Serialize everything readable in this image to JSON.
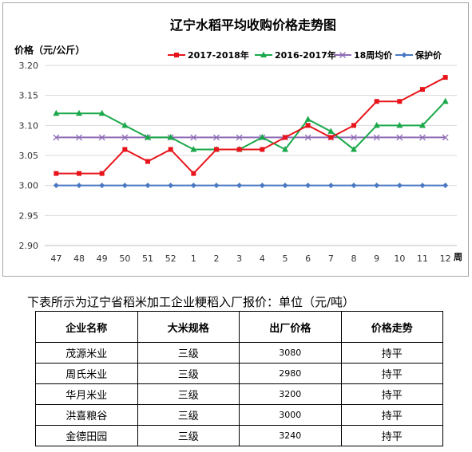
{
  "chart_data": {
    "type": "line",
    "title": "辽宁水稻平均收购价格走势图",
    "ylabel": "价格（元/公斤）",
    "xlabel": "周",
    "categories": [
      "47",
      "48",
      "49",
      "50",
      "51",
      "52",
      "1",
      "2",
      "3",
      "4",
      "5",
      "6",
      "7",
      "8",
      "9",
      "10",
      "11",
      "12"
    ],
    "ylim": [
      2.9,
      3.2
    ],
    "yticks": [
      "2.90",
      "2.95",
      "3.00",
      "3.05",
      "3.10",
      "3.15",
      "3.20"
    ],
    "grid": true,
    "legend_position": "top-right",
    "series": [
      {
        "name": "2017-2018年",
        "color": "#e8141b",
        "marker": "square",
        "values": [
          3.02,
          3.02,
          3.02,
          3.06,
          3.04,
          3.06,
          3.02,
          3.06,
          3.06,
          3.06,
          3.08,
          3.1,
          3.08,
          3.1,
          3.14,
          3.14,
          3.16,
          3.18
        ]
      },
      {
        "name": "2016-2017年",
        "color": "#1aa84a",
        "marker": "triangle",
        "values": [
          3.12,
          3.12,
          3.12,
          3.1,
          3.08,
          3.08,
          3.06,
          3.06,
          3.06,
          3.08,
          3.06,
          3.11,
          3.09,
          3.06,
          3.1,
          3.1,
          3.1,
          3.14
        ]
      },
      {
        "name": "18周均价",
        "color": "#8e6bb5",
        "marker": "x",
        "values": [
          3.08,
          3.08,
          3.08,
          3.08,
          3.08,
          3.08,
          3.08,
          3.08,
          3.08,
          3.08,
          3.08,
          3.08,
          3.08,
          3.08,
          3.08,
          3.08,
          3.08,
          3.08
        ]
      },
      {
        "name": "保护价",
        "color": "#4a78c2",
        "marker": "diamond",
        "values": [
          3.0,
          3.0,
          3.0,
          3.0,
          3.0,
          3.0,
          3.0,
          3.0,
          3.0,
          3.0,
          3.0,
          3.0,
          3.0,
          3.0,
          3.0,
          3.0,
          3.0,
          3.0
        ]
      }
    ]
  },
  "caption": "下表所示为辽宁省稻米加工企业粳稻入厂报价：单位（元/吨）",
  "table": {
    "headers": [
      "企业名称",
      "大米规格",
      "出厂价格",
      "价格走势"
    ],
    "rows": [
      [
        "茂源米业",
        "三级",
        "3080",
        "持平"
      ],
      [
        "周氏米业",
        "三级",
        "2980",
        "持平"
      ],
      [
        "华月米业",
        "三级",
        "3200",
        "持平"
      ],
      [
        "洪喜粮谷",
        "三级",
        "3000",
        "持平"
      ],
      [
        "金德田园",
        "三级",
        "3240",
        "持平"
      ]
    ]
  }
}
